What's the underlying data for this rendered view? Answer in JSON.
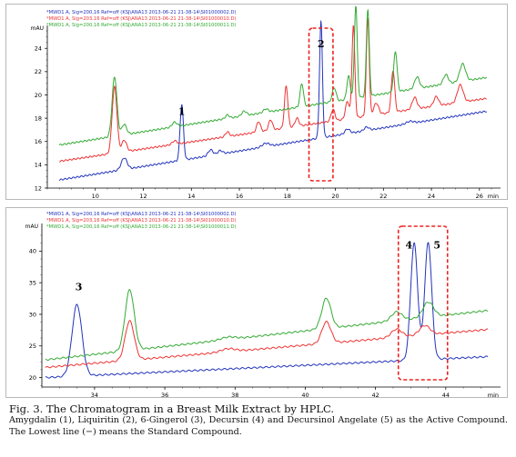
{
  "colors": {
    "blue": "#2233bb",
    "red": "#ee3333",
    "green": "#33aa33",
    "highlight": "#ee2222",
    "axis": "#000000",
    "legend_text": "#444444"
  },
  "caption": {
    "figure": "Fig. 3. The Chromatogram in a Breast Milk Extract by HPLC.",
    "description": "Amygdalin (1), Liquiritin (2), 6-Gingerol (3), Decursin (4) and Decursinol Angelate (5) as the Active Compound. The Lowest line (−) means the Standard Compound."
  },
  "chart_data": [
    {
      "type": "line",
      "yunit": "mAU",
      "xunit": "min",
      "xlim": [
        8,
        26.5
      ],
      "ylim": [
        12,
        25.5
      ],
      "xticks": [
        10,
        12,
        14,
        16,
        18,
        20,
        22,
        24,
        26
      ],
      "xtick_labels": [
        "10",
        "12",
        "14",
        "16",
        "18",
        "20",
        "22",
        "24",
        "26"
      ],
      "yticks": [
        12,
        14,
        16,
        18,
        20,
        22,
        24
      ],
      "ytick_labels": [
        "12",
        "14",
        "16",
        "18",
        "20",
        "22",
        "24"
      ],
      "legend": [
        "*MWD1 A, Sig=200,16 Ref=off (KSJ\\ANA13 2013-06-21 21-38-14\\SI01000002.D)",
        "*MWD1 A, Sig=203,16 Ref=off (KSJ\\ANA13 2013-06-21 21-38-14\\SI01000010.D)",
        "*MWD1 A, Sig=200,16 Ref=off (KSJ\\ANA13 2013-06-21 21-38-14\\SI01000011.D)"
      ],
      "annotations": [
        {
          "label": "1",
          "x": 13.6,
          "y": 18.3
        },
        {
          "label": "2",
          "x": 19.4,
          "y": 24.1
        }
      ],
      "highlight_range": [
        18.9,
        19.9
      ],
      "series": [
        {
          "color": "blue",
          "baseline": [
            [
              8.5,
              12.7
            ],
            [
              26.3,
              18.6
            ]
          ],
          "peaks": [
            [
              11.2,
              1.0,
              0.12
            ],
            [
              13.6,
              4.8,
              0.07
            ],
            [
              14.8,
              0.5,
              0.1
            ],
            [
              15.2,
              0.3,
              0.1
            ],
            [
              17.1,
              0.3,
              0.15
            ],
            [
              19.4,
              10.0,
              0.06
            ],
            [
              20.5,
              0.4,
              0.1
            ],
            [
              21.3,
              0.3,
              0.1
            ],
            [
              23.1,
              0.2,
              0.15
            ]
          ]
        },
        {
          "color": "red",
          "baseline": [
            [
              8.5,
              14.3
            ],
            [
              26.3,
              19.7
            ]
          ],
          "peaks": [
            [
              10.8,
              5.7,
              0.1
            ],
            [
              11.2,
              1.0,
              0.1
            ],
            [
              13.3,
              0.3,
              0.1
            ],
            [
              15.5,
              0.4,
              0.08
            ],
            [
              16.8,
              0.9,
              0.08
            ],
            [
              17.3,
              0.9,
              0.08
            ],
            [
              17.95,
              3.6,
              0.07
            ],
            [
              18.4,
              0.7,
              0.08
            ],
            [
              19.9,
              1.0,
              0.08
            ],
            [
              20.5,
              1.5,
              0.08
            ],
            [
              20.75,
              8.0,
              0.06
            ],
            [
              21.35,
              8.4,
              0.06
            ],
            [
              21.7,
              1.0,
              0.1
            ],
            [
              22.4,
              3.6,
              0.07
            ],
            [
              23.3,
              1.0,
              0.1
            ],
            [
              24.2,
              0.8,
              0.1
            ],
            [
              25.2,
              1.5,
              0.12
            ]
          ]
        },
        {
          "color": "green",
          "baseline": [
            [
              8.5,
              15.7
            ],
            [
              26.3,
              21.5
            ]
          ],
          "peaks": [
            [
              10.8,
              5.1,
              0.1
            ],
            [
              11.2,
              0.9,
              0.1
            ],
            [
              13.3,
              0.4,
              0.1
            ],
            [
              15.5,
              0.3,
              0.08
            ],
            [
              16.2,
              0.4,
              0.1
            ],
            [
              17.1,
              0.3,
              0.1
            ],
            [
              18.6,
              2.0,
              0.07
            ],
            [
              19.95,
              1.2,
              0.08
            ],
            [
              20.55,
              2.0,
              0.07
            ],
            [
              20.85,
              8.0,
              0.06
            ],
            [
              21.35,
              7.5,
              0.06
            ],
            [
              22.5,
              3.5,
              0.07
            ],
            [
              23.4,
              1.0,
              0.1
            ],
            [
              24.6,
              0.8,
              0.1
            ],
            [
              25.3,
              1.5,
              0.12
            ]
          ]
        }
      ]
    },
    {
      "type": "line",
      "yunit": "mAU",
      "xunit": "min",
      "xlim": [
        32.5,
        45.3
      ],
      "ylim": [
        18.5,
        43.5
      ],
      "xticks": [
        34,
        36,
        38,
        40,
        42,
        44
      ],
      "xtick_labels": [
        "34",
        "36",
        "38",
        "40",
        "42",
        "44"
      ],
      "yticks": [
        20,
        25,
        30,
        35,
        40
      ],
      "ytick_labels": [
        "20",
        "25",
        "30",
        "35",
        "40"
      ],
      "legend": [
        "*MWD1 A, Sig=200,16 Ref=off (KSJ\\ANA13 2013-06-21 21-38-14\\SI01000002.D)",
        "*MWD1 A, Sig=203,16 Ref=off (KSJ\\ANA13 2013-06-21 21-38-14\\SI01000010.D)",
        "*MWD1 A, Sig=200,16 Ref=off (KSJ\\ANA13 2013-06-21 21-38-14\\SI01000011.D)"
      ],
      "annotations": [
        {
          "label": "3",
          "x": 33.55,
          "y": 33.8
        },
        {
          "label": "4",
          "x": 42.95,
          "y": 40.4
        },
        {
          "label": "5",
          "x": 43.75,
          "y": 40.4
        }
      ],
      "highlight_range": [
        42.65,
        44.05
      ],
      "series": [
        {
          "color": "blue",
          "baseline": [
            [
              32.6,
              20.0
            ],
            [
              45.2,
              23.3
            ]
          ],
          "peaks": [
            [
              33.5,
              11.3,
              0.14
            ],
            [
              43.1,
              18.5,
              0.1
            ],
            [
              43.5,
              18.5,
              0.1
            ]
          ]
        },
        {
          "color": "red",
          "baseline": [
            [
              32.6,
              21.6
            ],
            [
              45.2,
              27.6
            ]
          ],
          "peaks": [
            [
              35.0,
              6.2,
              0.13
            ],
            [
              37.8,
              0.5,
              0.2
            ],
            [
              40.6,
              3.4,
              0.13
            ],
            [
              42.6,
              1.3,
              0.15
            ],
            [
              43.4,
              1.5,
              0.15
            ]
          ]
        },
        {
          "color": "green",
          "baseline": [
            [
              32.6,
              22.8
            ],
            [
              45.2,
              30.6
            ]
          ],
          "peaks": [
            [
              35.0,
              9.6,
              0.13
            ],
            [
              37.8,
              0.4,
              0.2
            ],
            [
              40.6,
              4.8,
              0.13
            ],
            [
              42.6,
              1.4,
              0.15
            ],
            [
              43.5,
              2.4,
              0.15
            ]
          ]
        }
      ]
    }
  ]
}
